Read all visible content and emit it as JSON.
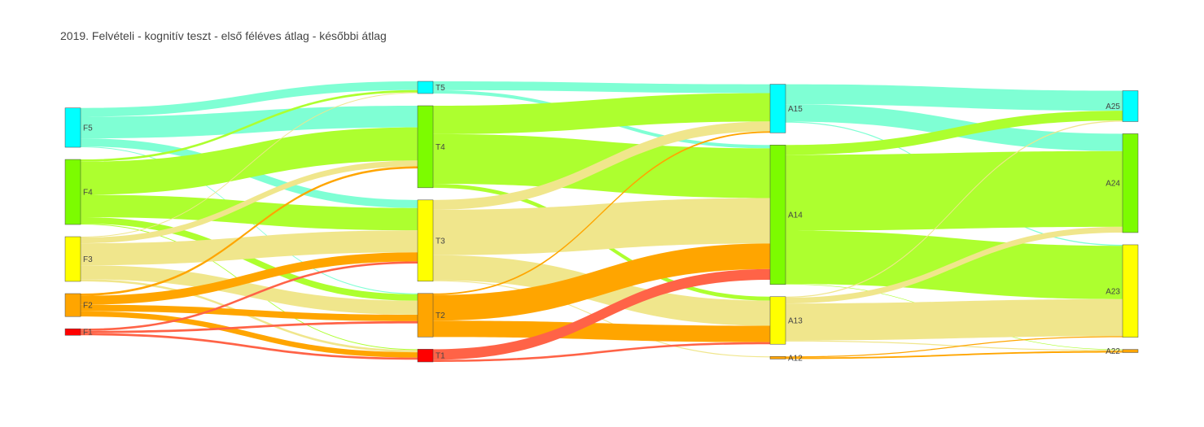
{
  "chart_data": {
    "type": "sankey",
    "title": "2019. Felvételi - kognitív teszt - első féléves átlag - későbbi átlag",
    "nodes": [
      {
        "id": "F5",
        "label": "F5",
        "stage": 0,
        "color": "#00ffff"
      },
      {
        "id": "F4",
        "label": "F4",
        "stage": 0,
        "color": "#7cfc00"
      },
      {
        "id": "F3",
        "label": "F3",
        "stage": 0,
        "color": "#ffff00"
      },
      {
        "id": "F2",
        "label": "F2",
        "stage": 0,
        "color": "#ffa500"
      },
      {
        "id": "F1",
        "label": "F1",
        "stage": 0,
        "color": "#ff0000"
      },
      {
        "id": "T5",
        "label": "T5",
        "stage": 1,
        "color": "#00ffff"
      },
      {
        "id": "T4",
        "label": "T4",
        "stage": 1,
        "color": "#7cfc00"
      },
      {
        "id": "T3",
        "label": "T3",
        "stage": 1,
        "color": "#ffff00"
      },
      {
        "id": "T2",
        "label": "T2",
        "stage": 1,
        "color": "#ffa500"
      },
      {
        "id": "T1",
        "label": "T1",
        "stage": 1,
        "color": "#ff0000"
      },
      {
        "id": "A15",
        "label": "A15",
        "stage": 2,
        "color": "#00ffff"
      },
      {
        "id": "A14",
        "label": "A14",
        "stage": 2,
        "color": "#7cfc00"
      },
      {
        "id": "A13",
        "label": "A13",
        "stage": 2,
        "color": "#ffff00"
      },
      {
        "id": "A12",
        "label": "A12",
        "stage": 2,
        "color": "#ffa500"
      },
      {
        "id": "A25",
        "label": "A25",
        "stage": 3,
        "color": "#00ffff"
      },
      {
        "id": "A24",
        "label": "A24",
        "stage": 3,
        "color": "#7cfc00"
      },
      {
        "id": "A23",
        "label": "A23",
        "stage": 3,
        "color": "#ffff00"
      },
      {
        "id": "A22",
        "label": "A22",
        "stage": 3,
        "color": "#ffa500"
      }
    ],
    "links": [
      {
        "source": "F5",
        "target": "T5",
        "value": 8.4,
        "color": "#7fffd4"
      },
      {
        "source": "F5",
        "target": "T4",
        "value": 20.8,
        "color": "#7fffd4"
      },
      {
        "source": "F5",
        "target": "T3",
        "value": 7.7,
        "color": "#7fffd4"
      },
      {
        "source": "F5",
        "target": "T2",
        "value": 0.8,
        "color": "#7fffd4"
      },
      {
        "source": "F4",
        "target": "T5",
        "value": 2.1,
        "color": "#adff2f"
      },
      {
        "source": "F4",
        "target": "T4",
        "value": 31.8,
        "color": "#adff2f"
      },
      {
        "source": "F4",
        "target": "T3",
        "value": 21.5,
        "color": "#adff2f"
      },
      {
        "source": "F4",
        "target": "T2",
        "value": 6.2,
        "color": "#adff2f"
      },
      {
        "source": "F4",
        "target": "T1",
        "value": 0.8,
        "color": "#adff2f"
      },
      {
        "source": "F3",
        "target": "T5",
        "value": 0.8,
        "color": "#f0e68c"
      },
      {
        "source": "F3",
        "target": "T4",
        "value": 5.5,
        "color": "#f0e68c"
      },
      {
        "source": "F3",
        "target": "T3",
        "value": 21.1,
        "color": "#f0e68c"
      },
      {
        "source": "F3",
        "target": "T2",
        "value": 13.4,
        "color": "#f0e68c"
      },
      {
        "source": "F3",
        "target": "T1",
        "value": 2.1,
        "color": "#f0e68c"
      },
      {
        "source": "F2",
        "target": "T4",
        "value": 2.1,
        "color": "#ffa500"
      },
      {
        "source": "F2",
        "target": "T3",
        "value": 8.6,
        "color": "#ffa500"
      },
      {
        "source": "F2",
        "target": "T2",
        "value": 6.2,
        "color": "#ffa500"
      },
      {
        "source": "F2",
        "target": "T1",
        "value": 5.1,
        "color": "#ffa500"
      },
      {
        "source": "F1",
        "target": "T3",
        "value": 2.1,
        "color": "#ff6347"
      },
      {
        "source": "F1",
        "target": "T2",
        "value": 2.1,
        "color": "#ff6347"
      },
      {
        "source": "F1",
        "target": "T1",
        "value": 2.1,
        "color": "#ff6347"
      },
      {
        "source": "T5",
        "target": "A15",
        "value": 8.5,
        "color": "#7fffd4"
      },
      {
        "source": "T5",
        "target": "A14",
        "value": 3.2,
        "color": "#7fffd4"
      },
      {
        "source": "T4",
        "target": "A15",
        "value": 27.2,
        "color": "#adff2f"
      },
      {
        "source": "T4",
        "target": "A14",
        "value": 47.7,
        "color": "#adff2f"
      },
      {
        "source": "T4",
        "target": "A13",
        "value": 3.8,
        "color": "#adff2f"
      },
      {
        "source": "T3",
        "target": "A15",
        "value": 9.4,
        "color": "#f0e68c"
      },
      {
        "source": "T3",
        "target": "A14",
        "value": 43.6,
        "color": "#f0e68c"
      },
      {
        "source": "T3",
        "target": "A13",
        "value": 24.1,
        "color": "#f0e68c"
      },
      {
        "source": "T3",
        "target": "A12",
        "value": 0.9,
        "color": "#f0e68c"
      },
      {
        "source": "T2",
        "target": "A15",
        "value": 1.5,
        "color": "#ffa500"
      },
      {
        "source": "T2",
        "target": "A14",
        "value": 24.6,
        "color": "#ffa500"
      },
      {
        "source": "T2",
        "target": "A13",
        "value": 15.7,
        "color": "#ffa500"
      },
      {
        "source": "T1",
        "target": "A14",
        "value": 10.2,
        "color": "#ff6347"
      },
      {
        "source": "T1",
        "target": "A13",
        "value": 2.0,
        "color": "#ff6347"
      },
      {
        "source": "A15",
        "target": "A25",
        "value": 19.2,
        "color": "#7fffd4"
      },
      {
        "source": "A15",
        "target": "A24",
        "value": 16.6,
        "color": "#7fffd4"
      },
      {
        "source": "A15",
        "target": "A23",
        "value": 1.0,
        "color": "#7fffd4"
      },
      {
        "source": "A14",
        "target": "A25",
        "value": 9.4,
        "color": "#adff2f"
      },
      {
        "source": "A14",
        "target": "A24",
        "value": 72.7,
        "color": "#adff2f"
      },
      {
        "source": "A14",
        "target": "A23",
        "value": 51.2,
        "color": "#adff2f"
      },
      {
        "source": "A14",
        "target": "A22",
        "value": 0.5,
        "color": "#adff2f"
      },
      {
        "source": "A13",
        "target": "A25",
        "value": 1.0,
        "color": "#f0e68c"
      },
      {
        "source": "A13",
        "target": "A24",
        "value": 5.5,
        "color": "#f0e68c"
      },
      {
        "source": "A13",
        "target": "A23",
        "value": 35.5,
        "color": "#f0e68c"
      },
      {
        "source": "A13",
        "target": "A22",
        "value": 1.0,
        "color": "#f0e68c"
      },
      {
        "source": "A12",
        "target": "A23",
        "value": 1.0,
        "color": "#ffa500"
      },
      {
        "source": "A12",
        "target": "A22",
        "value": 1.5,
        "color": "#ffa500"
      }
    ]
  }
}
